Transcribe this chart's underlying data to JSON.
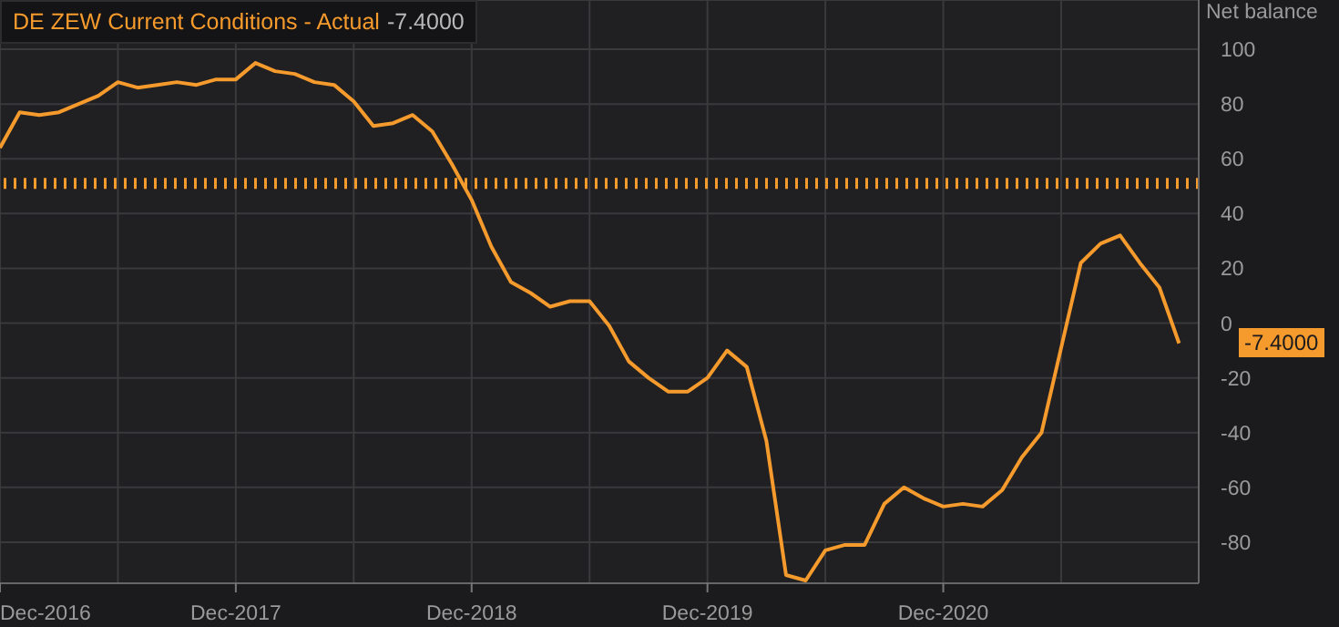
{
  "chart_data": {
    "type": "line",
    "ylabel": "Net balance",
    "legend": "top left",
    "grid": true,
    "marker": "none",
    "line_style": "solid",
    "x": [
      "2016-12",
      "2017-01",
      "2017-02",
      "2017-03",
      "2017-04",
      "2017-05",
      "2017-06",
      "2017-07",
      "2017-08",
      "2017-09",
      "2017-10",
      "2017-11",
      "2017-12",
      "2018-01",
      "2018-02",
      "2018-03",
      "2018-04",
      "2018-05",
      "2018-06",
      "2018-07",
      "2018-08",
      "2018-09",
      "2018-10",
      "2018-11",
      "2018-12",
      "2019-01",
      "2019-02",
      "2019-03",
      "2019-04",
      "2019-05",
      "2019-06",
      "2019-07",
      "2019-08",
      "2019-09",
      "2019-10",
      "2019-11",
      "2019-12",
      "2020-01",
      "2020-02",
      "2020-03",
      "2020-04",
      "2020-05",
      "2020-06",
      "2020-07",
      "2020-08",
      "2020-09",
      "2020-10",
      "2020-11",
      "2020-12",
      "2021-01",
      "2021-02",
      "2021-03",
      "2021-04",
      "2021-05",
      "2021-06",
      "2021-07",
      "2021-08",
      "2021-09",
      "2021-10",
      "2021-11",
      "2021-12"
    ],
    "series": [
      {
        "name": "DE ZEW Current Conditions - Actual",
        "color": "#f59a2c",
        "values": [
          64,
          77,
          76,
          77,
          80,
          83,
          88,
          86,
          87,
          88,
          87,
          89,
          89,
          95,
          92,
          91,
          88,
          87,
          81,
          72,
          73,
          76,
          70,
          58,
          45,
          28,
          15,
          11,
          6,
          8,
          8,
          -1,
          -14,
          -20,
          -25,
          -25,
          -20,
          -10,
          -16,
          -43,
          -92,
          -94,
          -83,
          -81,
          -81,
          -66,
          -60,
          -64,
          -67,
          -66,
          -67,
          -61,
          -49,
          -40,
          -9,
          22,
          29,
          32,
          22,
          13,
          -7.4
        ]
      }
    ],
    "xlim": [
      "2016-12",
      "2022-01"
    ],
    "xticks": [
      {
        "value": "2016-12",
        "label": "Dec-2016"
      },
      {
        "value": "2017-06",
        "label": null
      },
      {
        "value": "2017-12",
        "label": "Dec-2017"
      },
      {
        "value": "2018-06",
        "label": null
      },
      {
        "value": "2018-12",
        "label": "Dec-2018"
      },
      {
        "value": "2019-06",
        "label": null
      },
      {
        "value": "2019-12",
        "label": "Dec-2019"
      },
      {
        "value": "2020-06",
        "label": null
      },
      {
        "value": "2020-12",
        "label": "Dec-2020"
      },
      {
        "value": "2021-06",
        "label": null
      }
    ],
    "ylim": [
      -95,
      118
    ],
    "yticks": [
      -80,
      -60,
      -40,
      -20,
      0,
      20,
      40,
      60,
      80,
      100
    ],
    "ref_lines": [
      {
        "axis": "y",
        "value": 51,
        "color": "#f59a2c",
        "line_style": "dotted"
      }
    ],
    "annotations": [
      {
        "text": "-7.4000",
        "x": "2021-12",
        "y": -7.4
      },
      "-7.4000"
    ]
  }
}
